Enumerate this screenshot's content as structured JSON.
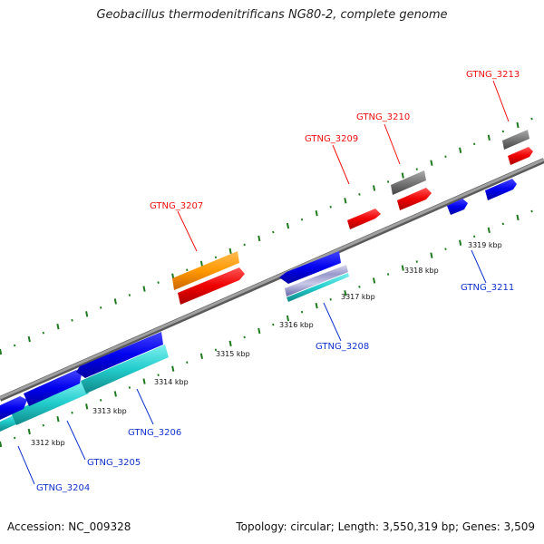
{
  "title": "Geobacillus thermodenitrificans NG80-2, complete genome",
  "footer": {
    "accession": "Accession: NC_009328",
    "summary": "Topology: circular; Length: 3,550,319 bp; Genes: 3,509"
  },
  "colors": {
    "forward_label": "#ee1111",
    "reverse_label": "#1133cc",
    "backbone": "#8a8a8a",
    "tick_dots": "#1f7a1f"
  },
  "scale_labels": [
    "3312 kbp",
    "3313 kbp",
    "3314 kbp",
    "3315 kbp",
    "3316 kbp",
    "3317 kbp",
    "3318 kbp",
    "3319 kbp"
  ],
  "gene_labels": {
    "GTNG_3207": "GTNG_3207",
    "GTNG_3209": "GTNG_3209",
    "GTNG_3210": "GTNG_3210",
    "GTNG_3213": "GTNG_3213",
    "GTNG_3204": "GTNG_3204",
    "GTNG_3205": "GTNG_3205",
    "GTNG_3206": "GTNG_3206",
    "GTNG_3208": "GTNG_3208",
    "GTNG_3211": "GTNG_3211"
  }
}
